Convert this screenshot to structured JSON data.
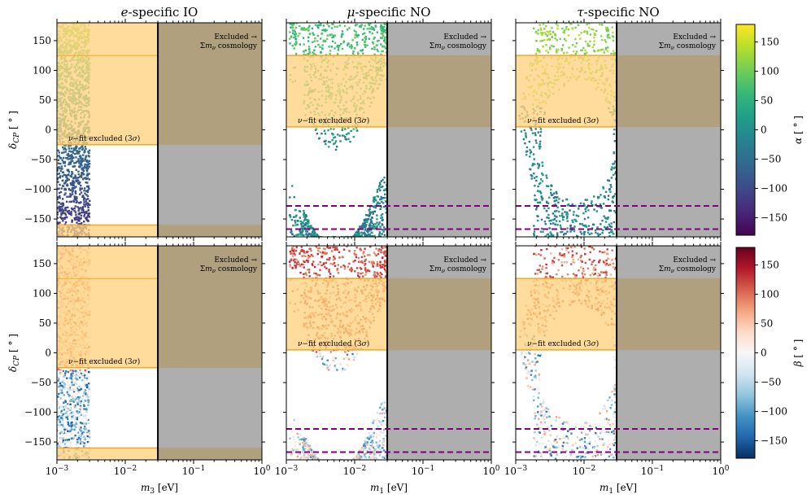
{
  "chart_data": {
    "type": "scatter",
    "description_grid": "2 rows x 3 columns of scatter panels sharing log-x and linear-y axes",
    "columns": [
      {
        "title": "e-specific IO",
        "title_prefix": "e",
        "title_rest": "-specific IO",
        "xlabel": "m_3 [eV]",
        "xlabel_var": "m",
        "xlabel_sub": "3",
        "xlabel_unit": " [eV]",
        "cosmology_bound": 0.03,
        "fit_excluded_band": [
          -25,
          125
        ]
      },
      {
        "title": "μ-specific NO",
        "title_prefix": "μ",
        "title_rest": "-specific NO",
        "xlabel": "m_1 [eV]",
        "xlabel_var": "m",
        "xlabel_sub": "1",
        "xlabel_unit": " [eV]",
        "cosmology_bound": 0.03,
        "fit_excluded_band": [
          5,
          125
        ],
        "dashed_lines": [
          -128,
          -167
        ]
      },
      {
        "title": "τ-specific NO",
        "title_prefix": "τ",
        "title_rest": "-specific NO",
        "xlabel": "m_1 [eV]",
        "xlabel_var": "m",
        "xlabel_sub": "1",
        "xlabel_unit": " [eV]",
        "cosmology_bound": 0.03,
        "fit_excluded_band": [
          5,
          125
        ],
        "dashed_lines": [
          -128,
          -167
        ]
      }
    ],
    "ylabel": "δ_CP [°]",
    "ylabel_var": "δ",
    "ylabel_sub": "CP",
    "ylabel_unit": " [ ° ]",
    "xlim": [
      0.001,
      1
    ],
    "ylim": [
      -180,
      180
    ],
    "x_scale": "log",
    "x_ticks": [
      {
        "v": 0.001,
        "base": "10",
        "exp": "−3"
      },
      {
        "v": 0.01,
        "base": "10",
        "exp": "−2"
      },
      {
        "v": 0.1,
        "base": "10",
        "exp": "−1"
      },
      {
        "v": 1,
        "base": "10",
        "exp": "0"
      }
    ],
    "y_ticks": [
      {
        "v": 150,
        "label": "150"
      },
      {
        "v": 100,
        "label": "100"
      },
      {
        "v": 50,
        "label": "50"
      },
      {
        "v": 0,
        "label": "0"
      },
      {
        "v": -50,
        "label": "−50"
      },
      {
        "v": -100,
        "label": "−100"
      },
      {
        "v": -150,
        "label": "−150"
      }
    ],
    "row_colorbars": [
      {
        "label": "α [°]",
        "label_var": "α",
        "label_unit": " [ ° ]",
        "colormap": "viridis",
        "range": [
          -180,
          180
        ],
        "ticks": [
          {
            "v": 150,
            "label": "150"
          },
          {
            "v": 100,
            "label": "100"
          },
          {
            "v": 50,
            "label": "50"
          },
          {
            "v": 0,
            "label": "0"
          },
          {
            "v": -50,
            "label": "−50"
          },
          {
            "v": -100,
            "label": "−100"
          },
          {
            "v": -150,
            "label": "−150"
          }
        ]
      },
      {
        "label": "β [°]",
        "label_var": "β",
        "label_unit": " [ ° ]",
        "colormap": "RdBu_r",
        "range": [
          -180,
          180
        ],
        "ticks": [
          {
            "v": 150,
            "label": "150"
          },
          {
            "v": 100,
            "label": "100"
          },
          {
            "v": 50,
            "label": "50"
          },
          {
            "v": 0,
            "label": "0"
          },
          {
            "v": -50,
            "label": "−50"
          },
          {
            "v": -100,
            "label": "−100"
          },
          {
            "v": -150,
            "label": "−150"
          }
        ]
      }
    ],
    "annotations": {
      "excluded_line1": "Excluded →",
      "excluded_line2": "Σm_ν cosmology",
      "excluded_line2_sigma": "Σ",
      "excluded_line2_m": "m",
      "excluded_line2_nu": "ν",
      "excluded_line2_rest": " cosmology",
      "fit_excluded": "ν−fit excluded (3σ)",
      "fit_nu": "ν",
      "fit_rest1": "−fit excluded (3",
      "fit_sigma": "σ",
      "fit_rest2": ")"
    },
    "colors": {
      "fit_band": "#ffd27f",
      "fit_band_edge": "#f5a623",
      "cosmology_region": "#aaaaaa",
      "overlap_region": "#b0a07e",
      "dashed": "#800080"
    },
    "scatter_regions": {
      "e_specific": {
        "x_range": [
          0.001,
          0.003
        ],
        "y_range": [
          -180,
          180
        ]
      },
      "mu_specific": {
        "description": "hyperbola-shaped band curving from m1≈1e-3 to 0.03 with gap between δ≈-80 and δ≈85 near m1≈0.01"
      },
      "tau_specific": {
        "description": "ring-shaped band opening between m1≈1.2e-3 and 0.03, hole centered at m1≈0.01, δ≈-20"
      }
    }
  }
}
